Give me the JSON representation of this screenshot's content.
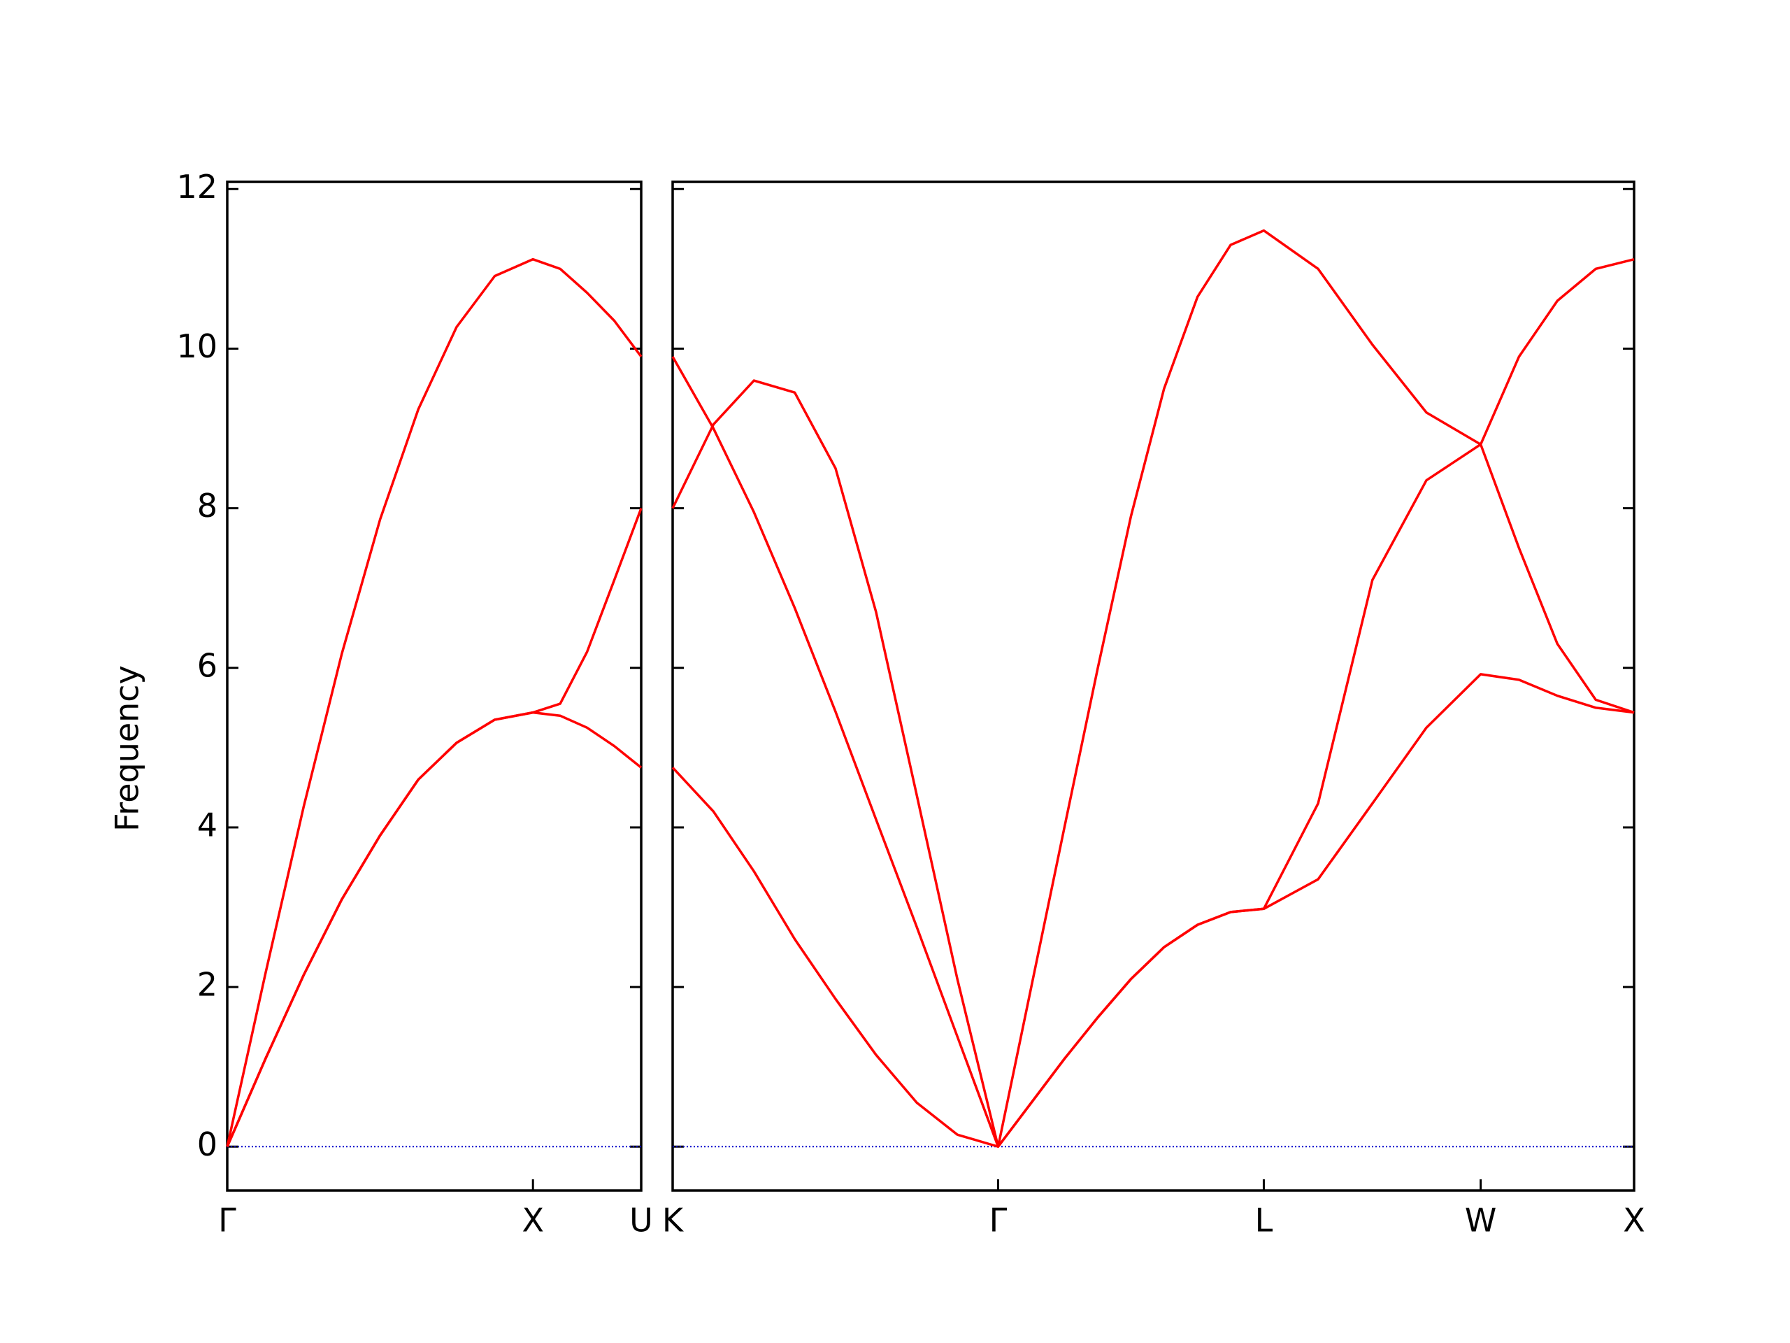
{
  "chart_data": [
    {
      "type": "line",
      "ylabel": "Frequency",
      "x": [
        0,
        0.125,
        0.25,
        0.375,
        0.5,
        0.625,
        0.75,
        0.875,
        1,
        1.089,
        1.177,
        1.266,
        1.354
      ],
      "xlim": [
        0,
        1.354
      ],
      "xticks": [
        {
          "value": 0,
          "label": "Γ"
        },
        {
          "value": 1,
          "label": "X"
        },
        {
          "value": 1.354,
          "label": "U"
        }
      ],
      "ylim": [
        -0.55,
        12.09
      ],
      "yticks": [
        0,
        2,
        4,
        6,
        8,
        10,
        12
      ],
      "show_ytick_labels": true,
      "hline": 0,
      "hline_color": "#0000cc",
      "series": [
        {
          "color": "#ff0000",
          "values": [
            0,
            2.17,
            4.26,
            6.18,
            7.86,
            9.24,
            10.27,
            10.91,
            11.12,
            11.0,
            10.7,
            10.35,
            9.9
          ]
        },
        {
          "color": "#ff0000",
          "values": [
            0,
            1.1,
            2.15,
            3.1,
            3.9,
            4.6,
            5.06,
            5.35,
            5.44,
            5.55,
            6.2,
            7.1,
            8.0
          ]
        },
        {
          "color": "#ff0000",
          "values": [
            0,
            1.1,
            2.15,
            3.1,
            3.9,
            4.6,
            5.06,
            5.35,
            5.44,
            5.4,
            5.25,
            5.02,
            4.75
          ]
        }
      ]
    },
    {
      "type": "line",
      "x": [
        0,
        0.133,
        0.265,
        0.398,
        0.531,
        0.663,
        0.796,
        0.928,
        1.061,
        1.169,
        1.277,
        1.386,
        1.494,
        1.602,
        1.711,
        1.819,
        1.927,
        2.104,
        2.281,
        2.457,
        2.634,
        2.759,
        2.884,
        3.009,
        3.134
      ],
      "xlim": [
        0,
        3.134
      ],
      "xticks": [
        {
          "value": 0,
          "label": "K"
        },
        {
          "value": 1.061,
          "label": "Γ"
        },
        {
          "value": 1.927,
          "label": "L"
        },
        {
          "value": 2.634,
          "label": "W"
        },
        {
          "value": 3.134,
          "label": "X"
        }
      ],
      "ylim": [
        -0.55,
        12.09
      ],
      "yticks": [
        0,
        2,
        4,
        6,
        8,
        10,
        12
      ],
      "show_ytick_labels": false,
      "hline": 0,
      "hline_color": "#0000cc",
      "series": [
        {
          "color": "#ff0000",
          "values": [
            9.9,
            9.0,
            7.95,
            6.75,
            5.45,
            4.1,
            2.75,
            1.38,
            0,
            2.0,
            4.0,
            6.0,
            7.9,
            9.5,
            10.65,
            11.3,
            11.48,
            11.0,
            10.05,
            9.2,
            8.8,
            9.9,
            10.6,
            11.0,
            11.12
          ]
        },
        {
          "color": "#ff0000",
          "values": [
            8.0,
            9.05,
            9.6,
            9.45,
            8.5,
            6.7,
            4.4,
            2.1,
            0,
            0.55,
            1.1,
            1.62,
            2.1,
            2.5,
            2.78,
            2.94,
            2.98,
            4.3,
            7.1,
            8.35,
            8.8,
            7.5,
            6.3,
            5.6,
            5.44
          ]
        },
        {
          "color": "#ff0000",
          "values": [
            4.75,
            4.2,
            3.45,
            2.6,
            1.85,
            1.15,
            0.55,
            0.15,
            0,
            0.55,
            1.1,
            1.62,
            2.1,
            2.5,
            2.78,
            2.94,
            2.98,
            3.35,
            4.3,
            5.25,
            5.92,
            5.85,
            5.65,
            5.5,
            5.44
          ]
        }
      ]
    }
  ]
}
